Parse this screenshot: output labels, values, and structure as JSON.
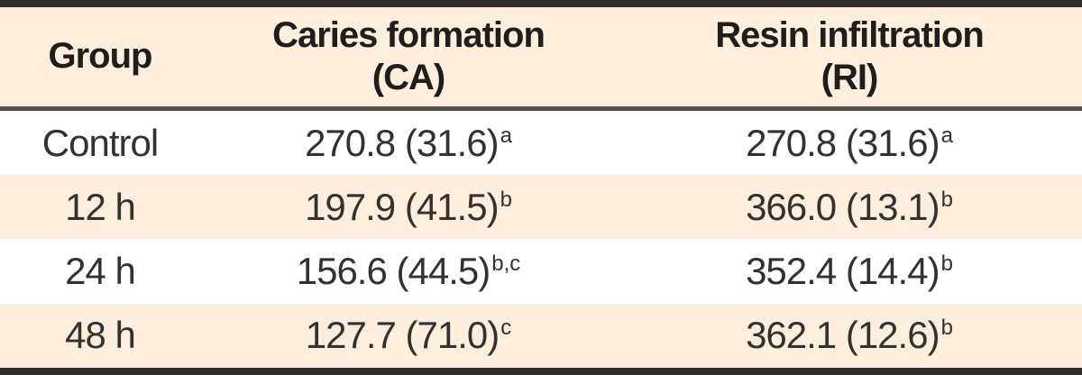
{
  "chart_data": {
    "type": "table",
    "title": "",
    "columns": [
      "Group",
      "Caries formation (CA)",
      "Resin infiltration (RI)"
    ],
    "rows": [
      {
        "group": "Control",
        "ca_mean": 270.8,
        "ca_sd": 31.6,
        "ca_sig": "a",
        "ri_mean": 270.8,
        "ri_sd": 31.6,
        "ri_sig": "a"
      },
      {
        "group": "12 h",
        "ca_mean": 197.9,
        "ca_sd": 41.5,
        "ca_sig": "b",
        "ri_mean": 366.0,
        "ri_sd": 13.1,
        "ri_sig": "b"
      },
      {
        "group": "24 h",
        "ca_mean": 156.6,
        "ca_sd": 44.5,
        "ca_sig": "b,c",
        "ri_mean": 352.4,
        "ri_sd": 14.4,
        "ri_sig": "b"
      },
      {
        "group": "48 h",
        "ca_mean": 127.7,
        "ca_sd": 71.0,
        "ca_sig": "c",
        "ri_mean": 362.1,
        "ri_sd": 12.6,
        "ri_sig": "b"
      }
    ]
  },
  "table": {
    "header": {
      "group": "Group",
      "ca_line1": "Caries formation",
      "ca_line2": "(CA)",
      "ri_line1": "Resin infiltration",
      "ri_line2": "(RI)"
    },
    "rows": [
      {
        "group": "Control",
        "ca": "270.8 (31.6)",
        "ca_sup": "a",
        "ri": "270.8 (31.6)",
        "ri_sup": "a"
      },
      {
        "group": "12 h",
        "ca": "197.9 (41.5)",
        "ca_sup": "b",
        "ri": "366.0 (13.1)",
        "ri_sup": "b"
      },
      {
        "group": "24 h",
        "ca": "156.6 (44.5)",
        "ca_sup": "b,c",
        "ri": "352.4 (14.4)",
        "ri_sup": "b"
      },
      {
        "group": "48 h",
        "ca": "127.7 (71.0)",
        "ca_sup": "c",
        "ri": "362.1 (12.6)",
        "ri_sup": "b"
      }
    ]
  },
  "colors": {
    "stripe_background": "#fdeedd",
    "border_dark": "#2e2d2a",
    "header_rule": "#54514c",
    "text": "#333230"
  }
}
